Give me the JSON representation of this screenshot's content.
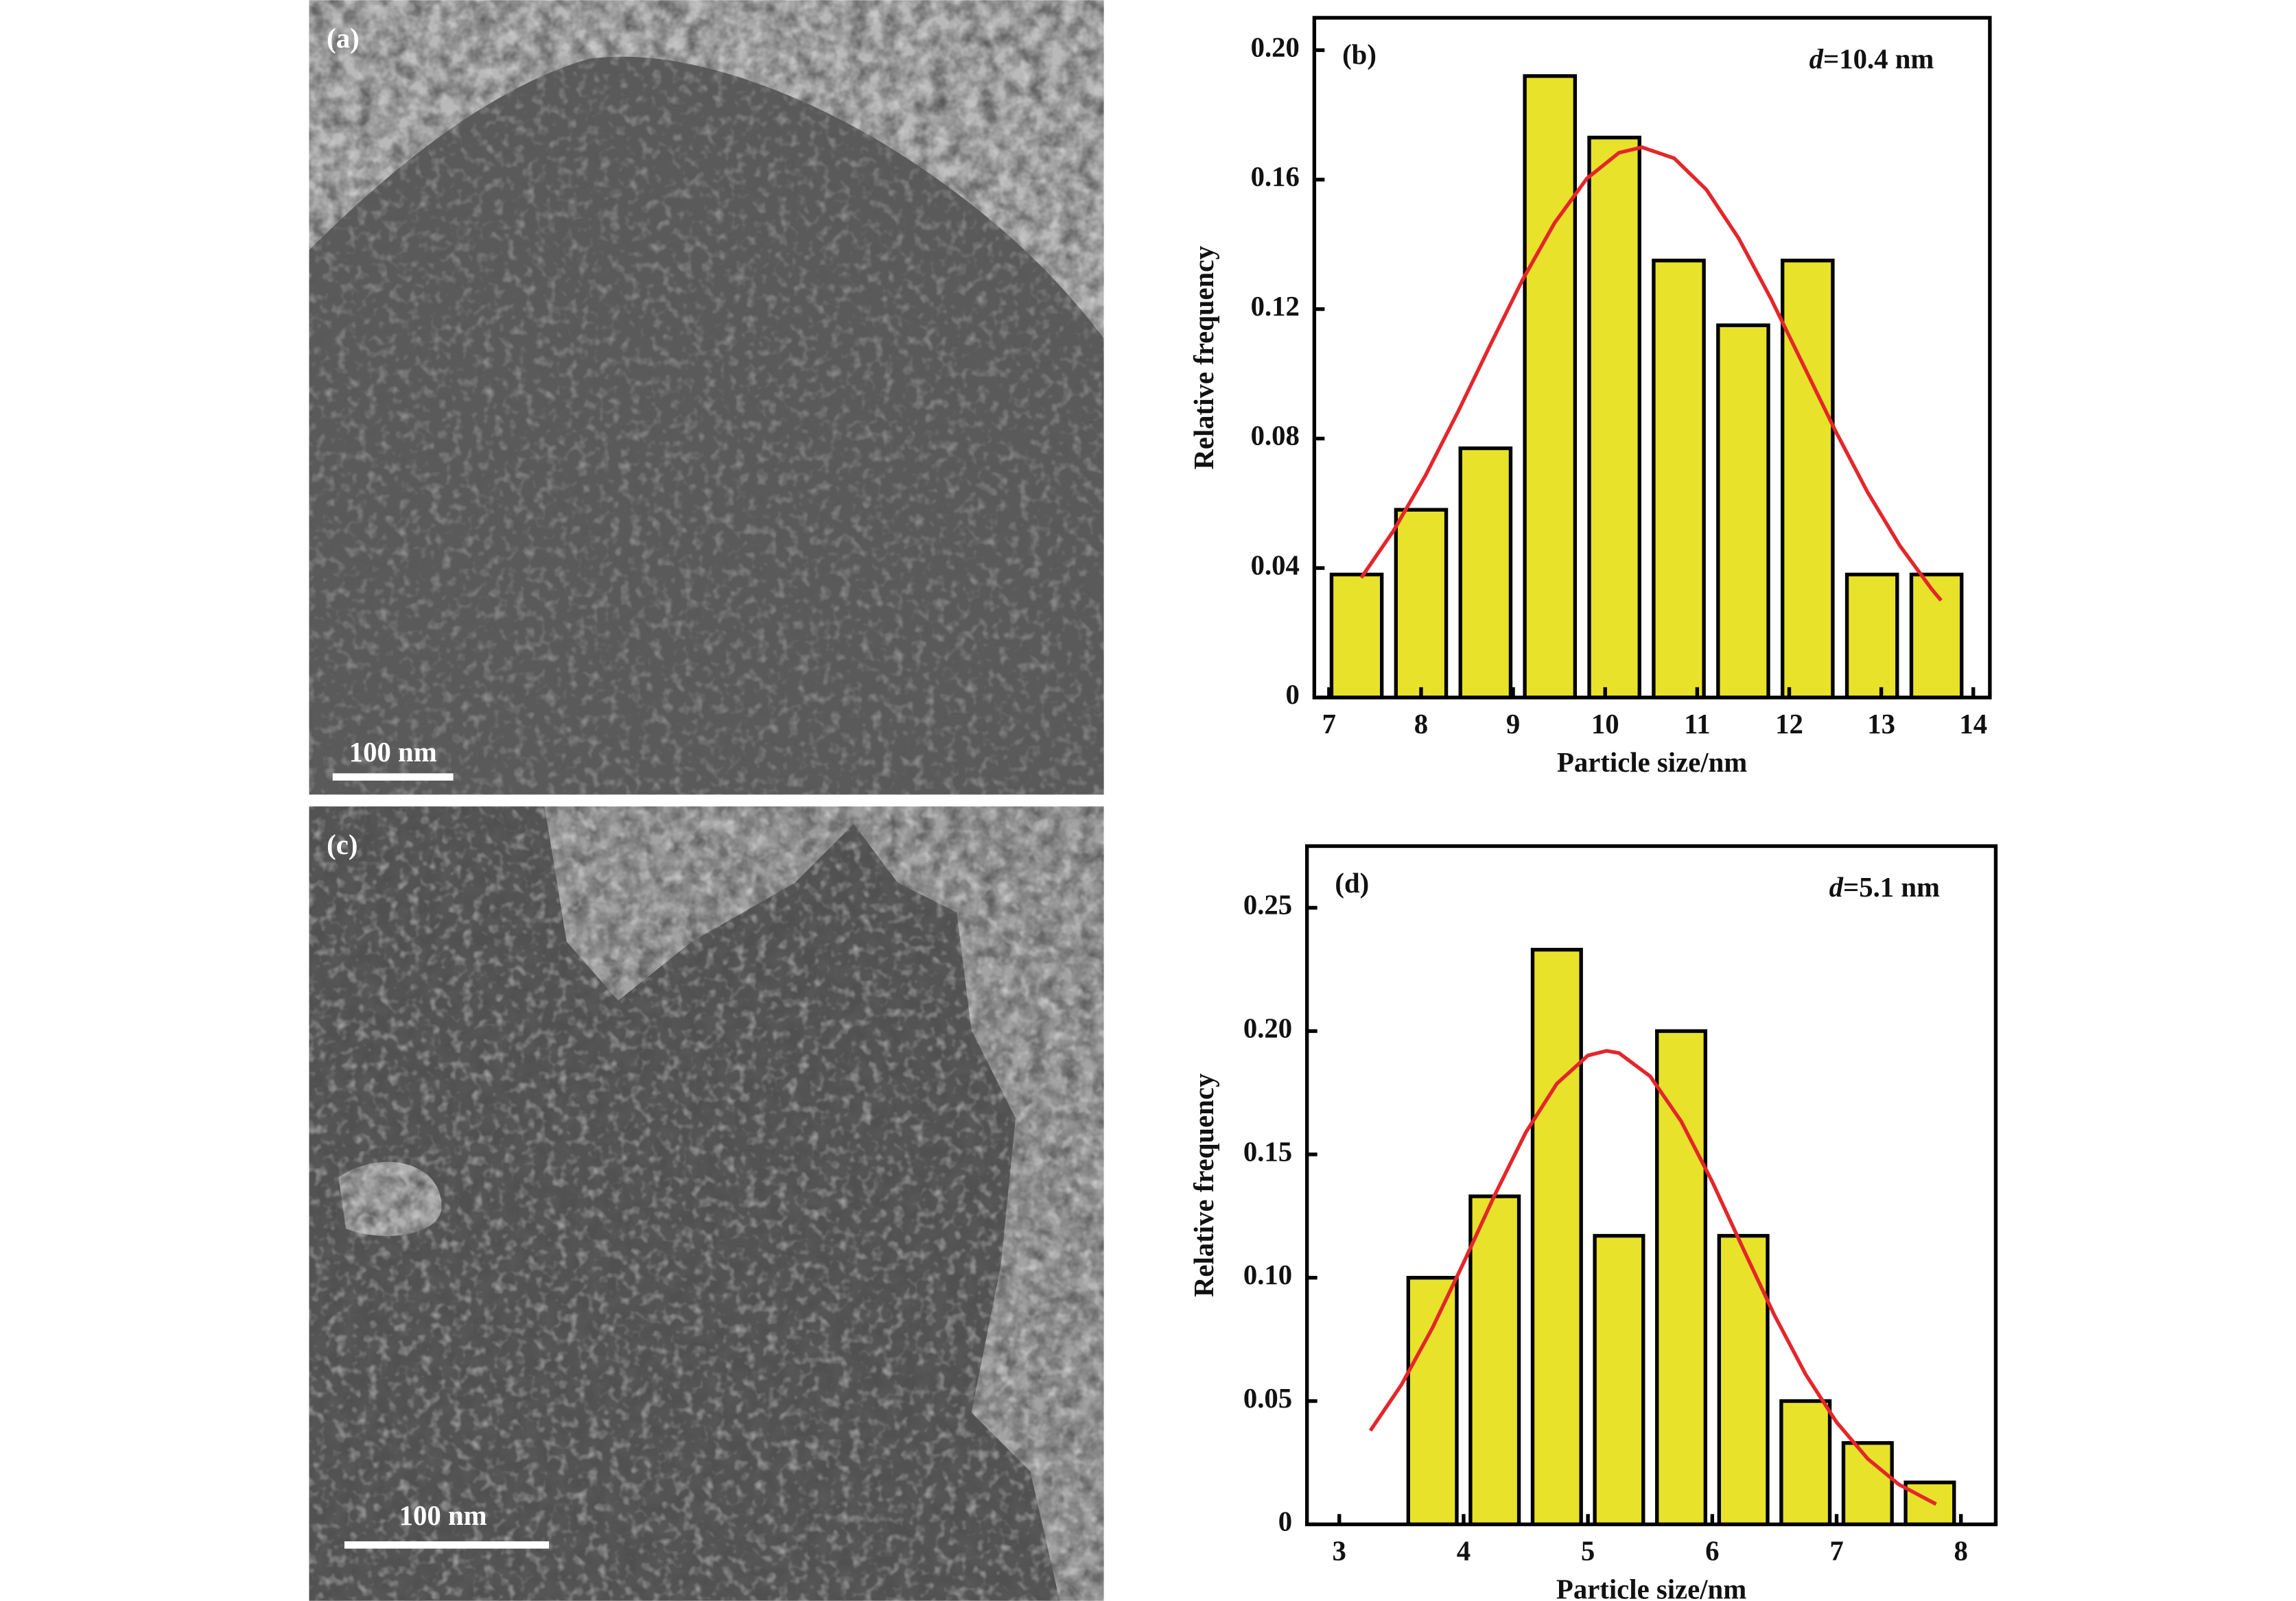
{
  "images": [
    {
      "label": "(a)",
      "scale_bar": "100 nm"
    },
    {
      "label": "(c)",
      "scale_bar": "100 nm"
    }
  ],
  "chart_data": [
    {
      "type": "bar",
      "label": "(b)",
      "annotation_symbol": "d",
      "annotation": "=10.4 nm",
      "x_label": "Particle size/nm",
      "y_label": "Relative frequency",
      "xlim": [
        6.84,
        14.18
      ],
      "ylim": [
        0,
        0.21
      ],
      "xticks": [
        7,
        8,
        9,
        10,
        11,
        12,
        13,
        14
      ],
      "yticks": [
        0,
        0.04,
        0.08,
        0.12,
        0.16,
        {
          "value": 0.2,
          "label": "0.20"
        }
      ],
      "bars": {
        "color": "#e8e22a",
        "x": [
          7.3,
          8.0,
          8.7,
          9.4,
          10.1,
          10.8,
          11.5,
          12.2,
          12.9,
          13.6
        ],
        "values": [
          0.038,
          0.058,
          0.077,
          0.192,
          0.173,
          0.135,
          0.115,
          0.135,
          0.038,
          0.038
        ]
      },
      "fit": {
        "color": "#e4262a",
        "x": [
          7.35,
          7.7,
          8.05,
          8.4,
          8.75,
          9.1,
          9.45,
          9.8,
          10.15,
          10.4,
          10.75,
          11.1,
          11.45,
          11.8,
          12.15,
          12.5,
          12.85,
          13.2,
          13.55,
          13.65
        ],
        "values": [
          0.037,
          0.0515,
          0.0687,
          0.0882,
          0.1088,
          0.1289,
          0.1466,
          0.1603,
          0.1683,
          0.17,
          0.1666,
          0.1569,
          0.1419,
          0.1233,
          0.1029,
          0.0825,
          0.0635,
          0.047,
          0.0334,
          0.03
        ]
      }
    },
    {
      "type": "bar",
      "label": "(d)",
      "annotation_symbol": "d",
      "annotation": "=5.1 nm",
      "x_label": "Particle size/nm",
      "y_label": "Relative frequency",
      "xlim": [
        2.74,
        8.28
      ],
      "ylim": [
        0,
        0.275
      ],
      "xticks": [
        3,
        4,
        5,
        6,
        7,
        8
      ],
      "yticks": [
        0,
        0.05,
        {
          "value": 0.1,
          "label": "0.10"
        },
        0.15,
        {
          "value": 0.2,
          "label": "0.20"
        },
        0.25
      ],
      "bars": {
        "color": "#e8e22a",
        "x": [
          3.75,
          4.25,
          4.75,
          5.25,
          5.75,
          6.25,
          6.75,
          7.25,
          7.75
        ],
        "values": [
          0.1,
          0.133,
          0.233,
          0.117,
          0.2,
          0.117,
          0.05,
          0.033,
          0.017
        ]
      },
      "fit": {
        "color": "#e4262a",
        "x": [
          3.25,
          3.5,
          3.75,
          4.0,
          4.25,
          4.5,
          4.75,
          5.0,
          5.15,
          5.25,
          5.5,
          5.75,
          6.0,
          6.25,
          6.5,
          6.75,
          7.0,
          7.25,
          7.5,
          7.8
        ],
        "values": [
          0.038,
          0.0566,
          0.0797,
          0.1061,
          0.1335,
          0.1589,
          0.1787,
          0.1901,
          0.192,
          0.1911,
          0.1817,
          0.1634,
          0.1389,
          0.1116,
          0.0848,
          0.0609,
          0.0414,
          0.0266,
          0.0162,
          0.0082
        ]
      }
    }
  ]
}
